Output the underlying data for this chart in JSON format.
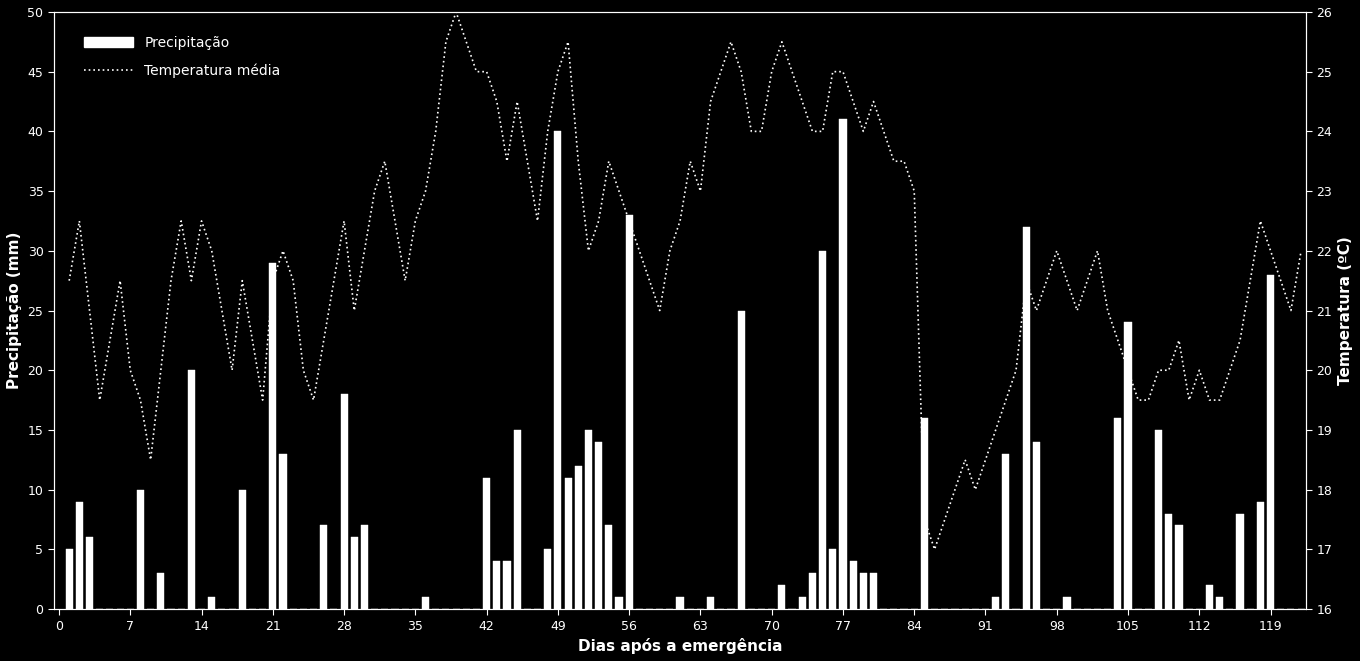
{
  "background_color": "#000000",
  "bar_color": "#ffffff",
  "line_color": "#ffffff",
  "text_color": "#ffffff",
  "ylabel_left": "Precipitação (mm)",
  "ylabel_right": "Temperatura (ºC)",
  "xlabel": "Dias após a emergência",
  "legend_precip": "Precipitação",
  "legend_temp": "Temperatura média",
  "ylim_left": [
    0,
    50
  ],
  "ylim_right": [
    16,
    26
  ],
  "yticks_left": [
    0,
    5,
    10,
    15,
    20,
    25,
    30,
    35,
    40,
    45,
    50
  ],
  "yticks_right": [
    16,
    17,
    18,
    19,
    20,
    21,
    22,
    23,
    24,
    25,
    26
  ],
  "xticks": [
    0,
    7,
    14,
    21,
    28,
    35,
    42,
    49,
    56,
    63,
    70,
    77,
    84,
    91,
    98,
    105,
    112,
    119
  ],
  "xlim": [
    -0.5,
    122.5
  ],
  "days": [
    1,
    2,
    3,
    4,
    5,
    6,
    7,
    8,
    9,
    10,
    11,
    12,
    13,
    14,
    15,
    16,
    17,
    18,
    19,
    20,
    21,
    22,
    23,
    24,
    25,
    26,
    27,
    28,
    29,
    30,
    31,
    32,
    33,
    34,
    35,
    36,
    37,
    38,
    39,
    40,
    41,
    42,
    43,
    44,
    45,
    46,
    47,
    48,
    49,
    50,
    51,
    52,
    53,
    54,
    55,
    56,
    57,
    58,
    59,
    60,
    61,
    62,
    63,
    64,
    65,
    66,
    67,
    68,
    69,
    70,
    71,
    72,
    73,
    74,
    75,
    76,
    77,
    78,
    79,
    80,
    81,
    82,
    83,
    84,
    85,
    86,
    87,
    88,
    89,
    90,
    91,
    92,
    93,
    94,
    95,
    96,
    97,
    98,
    99,
    100,
    101,
    102,
    103,
    104,
    105,
    106,
    107,
    108,
    109,
    110,
    111,
    112,
    113,
    114,
    115,
    116,
    117,
    118,
    119,
    120,
    121,
    122
  ],
  "precip": [
    5,
    9,
    6,
    0,
    0,
    0,
    0,
    10,
    0,
    3,
    0,
    0,
    20,
    0,
    1,
    0,
    0,
    10,
    0,
    0,
    29,
    13,
    0,
    0,
    0,
    7,
    0,
    18,
    6,
    7,
    0,
    0,
    0,
    0,
    0,
    1,
    0,
    0,
    0,
    0,
    0,
    11,
    4,
    4,
    15,
    0,
    0,
    5,
    40,
    11,
    12,
    15,
    14,
    7,
    1,
    33,
    0,
    0,
    0,
    0,
    1,
    0,
    0,
    1,
    0,
    0,
    25,
    0,
    0,
    0,
    2,
    0,
    1,
    3,
    30,
    5,
    41,
    4,
    3,
    3,
    0,
    0,
    0,
    0,
    16,
    0,
    0,
    0,
    0,
    0,
    0,
    1,
    13,
    0,
    32,
    14,
    0,
    0,
    1,
    0,
    0,
    0,
    0,
    16,
    24,
    0,
    0,
    15,
    8,
    7,
    0,
    0,
    2,
    1,
    0,
    8,
    0,
    9,
    28,
    0,
    0,
    0
  ],
  "temp": [
    21.5,
    22.5,
    21.0,
    19.5,
    20.5,
    21.5,
    20.0,
    19.5,
    18.5,
    20.0,
    21.5,
    22.5,
    21.5,
    22.5,
    22.0,
    21.0,
    20.0,
    21.5,
    20.5,
    19.5,
    21.5,
    22.0,
    21.5,
    20.0,
    19.5,
    20.5,
    21.5,
    22.5,
    21.0,
    22.0,
    23.0,
    23.5,
    22.5,
    21.5,
    22.5,
    23.0,
    24.0,
    25.5,
    26.0,
    25.5,
    25.0,
    25.0,
    24.5,
    23.5,
    24.5,
    23.5,
    22.5,
    24.0,
    25.0,
    25.5,
    23.5,
    22.0,
    22.5,
    23.5,
    23.0,
    22.5,
    22.0,
    21.5,
    21.0,
    22.0,
    22.5,
    23.5,
    23.0,
    24.5,
    25.0,
    25.5,
    25.0,
    24.0,
    24.0,
    25.0,
    25.5,
    25.0,
    24.5,
    24.0,
    24.0,
    25.0,
    25.0,
    24.5,
    24.0,
    24.5,
    24.0,
    23.5,
    23.5,
    23.0,
    17.5,
    17.0,
    17.5,
    18.0,
    18.5,
    18.0,
    18.5,
    19.0,
    19.5,
    20.0,
    21.5,
    21.0,
    21.5,
    22.0,
    21.5,
    21.0,
    21.5,
    22.0,
    21.0,
    20.5,
    20.0,
    19.5,
    19.5,
    20.0,
    20.0,
    20.5,
    19.5,
    20.0,
    19.5,
    19.5,
    20.0,
    20.5,
    21.5,
    22.5,
    22.0,
    21.5,
    21.0,
    22.0
  ]
}
